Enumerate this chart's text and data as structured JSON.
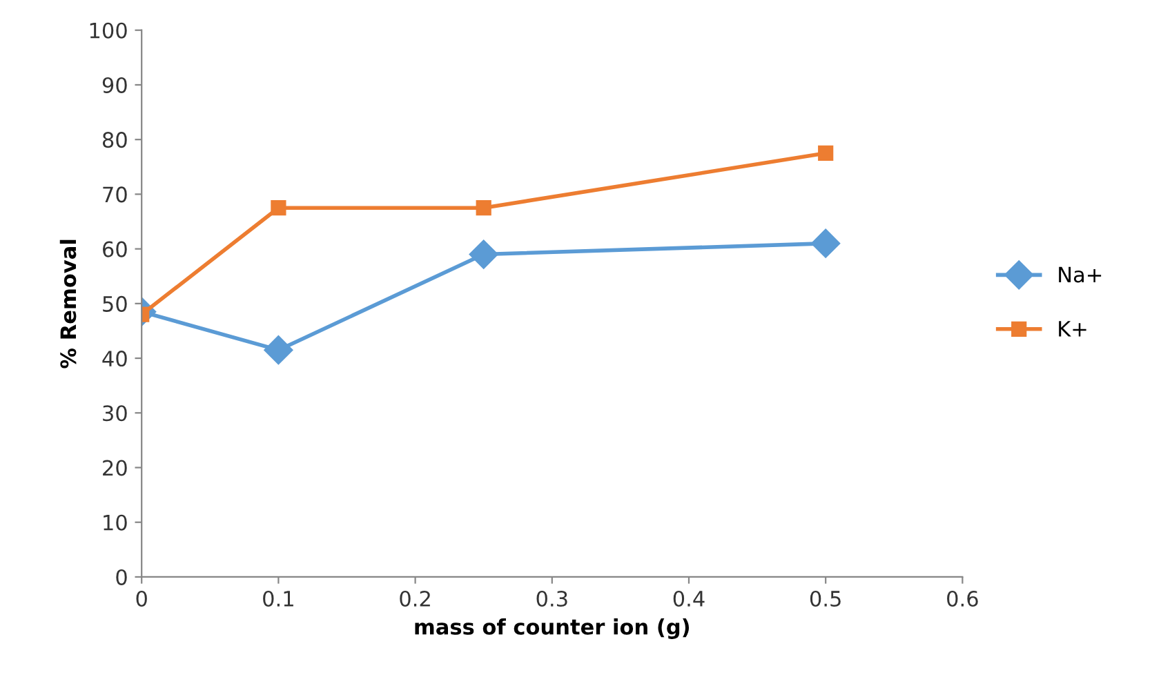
{
  "chart_data": {
    "type": "line",
    "xlabel": "mass of counter ion (g)",
    "ylabel": "% Removal",
    "x": [
      0,
      0.1,
      0.25,
      0.5
    ],
    "series": [
      {
        "name": "Na+",
        "color": "#5b9bd5",
        "marker": "diamond",
        "values": [
          48.5,
          41.5,
          59,
          61
        ]
      },
      {
        "name": "K+",
        "color": "#ed7d31",
        "marker": "square",
        "values": [
          48,
          67.5,
          67.5,
          77.5
        ]
      }
    ],
    "xlim": [
      0,
      0.6
    ],
    "xticks": [
      0,
      0.1,
      0.2,
      0.3,
      0.4,
      0.5,
      0.6
    ],
    "ylim": [
      0,
      100
    ],
    "yticks": [
      0,
      10,
      20,
      30,
      40,
      50,
      60,
      70,
      80,
      90,
      100
    ],
    "grid": false,
    "legend": "right",
    "line_style": "solid"
  }
}
